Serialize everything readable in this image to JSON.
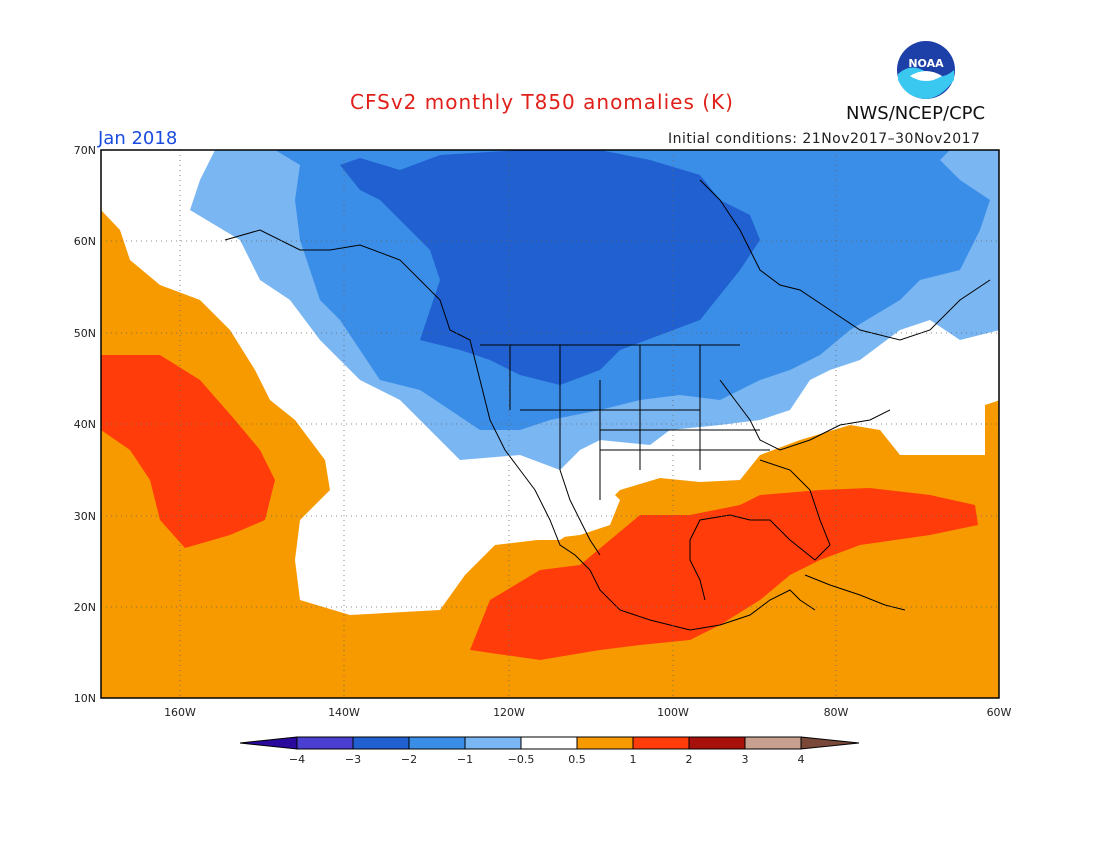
{
  "title": "CFSv2 monthly T850 anomalies (K)",
  "agency": "NWS/NCEP/CPC",
  "logo_text": "NOAA",
  "month": "Jan 2018",
  "initial_conditions": "Initial conditions: 21Nov2017–30Nov2017",
  "lat_labels": [
    "70N",
    "60N",
    "50N",
    "40N",
    "30N",
    "20N",
    "10N"
  ],
  "lon_labels": [
    "160W",
    "140W",
    "120W",
    "100W",
    "80W",
    "60W"
  ],
  "colorbar": {
    "ticks": [
      "−4",
      "−3",
      "−2",
      "−1",
      "−0.5",
      "0.5",
      "1",
      "2",
      "3",
      "4"
    ],
    "colors": [
      "#2a0a9c",
      "#4a3fd0",
      "#2060d0",
      "#3a8ee8",
      "#7ab6f2",
      "#ffffff",
      "#f79a00",
      "#ff3c0a",
      "#a8100c",
      "#c8a090",
      "#7a4838"
    ]
  }
}
